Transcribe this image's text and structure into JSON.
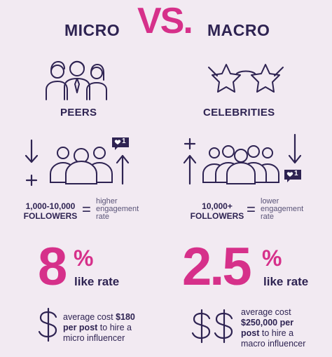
{
  "header": {
    "left": "MICRO",
    "vs": "VS.",
    "right": "MACRO"
  },
  "micro": {
    "category": "PEERS",
    "followers_range": "1,000-10,000",
    "followers_label": "FOLLOWERS",
    "equals": "=",
    "engagement": "higher engagement rate",
    "rate_number": "8",
    "rate_percent": "%",
    "rate_label": "like rate",
    "cost_intro": "average cost",
    "cost_amount": "$180",
    "cost_unit": "per post",
    "cost_outro": "to hire a micro influencer",
    "notification_count": "1"
  },
  "macro": {
    "category": "CELEBRITIES",
    "followers_range": "10,000+",
    "followers_label": "FOLLOWERS",
    "equals": "=",
    "engagement": "lower engagement rate",
    "rate_number": "2.5",
    "rate_percent": "%",
    "rate_label": "like rate",
    "cost_intro": "average cost",
    "cost_amount": "$250,000 per",
    "cost_unit": "post",
    "cost_outro": "to hire a macro influencer",
    "notification_count": "1"
  },
  "colors": {
    "accent": "#d6308a",
    "navy": "#2e2352",
    "background": "#f2eaf2"
  }
}
